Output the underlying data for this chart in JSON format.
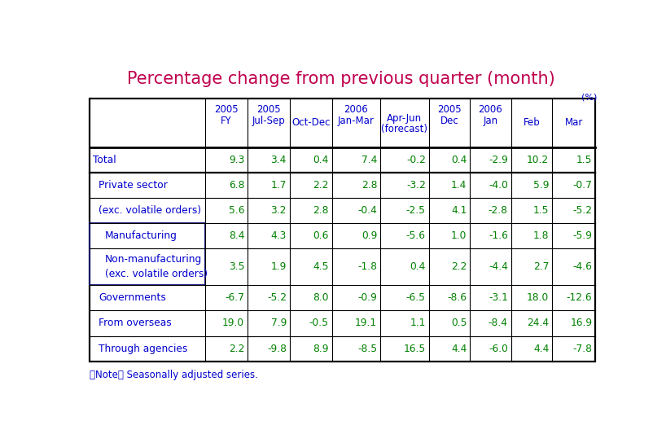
{
  "title": "Percentage change from previous quarter (month)",
  "title_color": "#c0004e",
  "unit_label": "(%)",
  "note": "（Note） Seasonally adjusted series.",
  "header_color": "#0000cd",
  "data_color": "#008000",
  "row_label_color": "#0000cd",
  "col_headers": [
    {
      "line1": "2005",
      "line2": "FY",
      "line3": ""
    },
    {
      "line1": "2005",
      "line2": "Jul-Sep",
      "line3": ""
    },
    {
      "line1": "",
      "line2": "Oct-Dec",
      "line3": ""
    },
    {
      "line1": "2006",
      "line2": "Jan-Mar",
      "line3": ""
    },
    {
      "line1": "",
      "line2": "Apr-Jun",
      "line3": "(forecast)"
    },
    {
      "line1": "2005",
      "line2": "Dec",
      "line3": ""
    },
    {
      "line1": "2006",
      "line2": "Jan",
      "line3": ""
    },
    {
      "line1": "",
      "line2": "Feb",
      "line3": ""
    },
    {
      "line1": "",
      "line2": "Mar",
      "line3": ""
    }
  ],
  "rows": [
    {
      "label": "Total",
      "indent": 0,
      "values": [
        "9.3",
        "3.4",
        "0.4",
        "7.4",
        "-0.2",
        "0.4",
        "-2.9",
        "10.2",
        "1.5"
      ],
      "inner_box": false,
      "multiline": false
    },
    {
      "label": "Private sector",
      "indent": 1,
      "values": [
        "6.8",
        "1.7",
        "2.2",
        "2.8",
        "-3.2",
        "1.4",
        "-4.0",
        "5.9",
        "-0.7"
      ],
      "inner_box": false,
      "multiline": false
    },
    {
      "label": "(exc. volatile orders)",
      "indent": 1,
      "values": [
        "5.6",
        "3.2",
        "2.8",
        "-0.4",
        "-2.5",
        "4.1",
        "-2.8",
        "1.5",
        "-5.2"
      ],
      "inner_box": false,
      "multiline": false
    },
    {
      "label": "Manufacturing",
      "indent": 2,
      "values": [
        "8.4",
        "4.3",
        "0.6",
        "0.9",
        "-5.6",
        "1.0",
        "-1.6",
        "1.8",
        "-5.9"
      ],
      "inner_box": true,
      "multiline": false
    },
    {
      "label": "Non-manufacturing\n(exc. volatile orders)",
      "indent": 2,
      "values": [
        "3.5",
        "1.9",
        "4.5",
        "-1.8",
        "0.4",
        "2.2",
        "-4.4",
        "2.7",
        "-4.6"
      ],
      "inner_box": true,
      "multiline": true
    },
    {
      "label": "Governments",
      "indent": 1,
      "values": [
        "-6.7",
        "-5.2",
        "8.0",
        "-0.9",
        "-6.5",
        "-8.6",
        "-3.1",
        "18.0",
        "-12.6"
      ],
      "inner_box": false,
      "multiline": false
    },
    {
      "label": "From overseas",
      "indent": 1,
      "values": [
        "19.0",
        "7.9",
        "-0.5",
        "19.1",
        "1.1",
        "0.5",
        "-8.4",
        "24.4",
        "16.9"
      ],
      "inner_box": false,
      "multiline": false
    },
    {
      "label": "Through agencies",
      "indent": 1,
      "values": [
        "2.2",
        "-9.8",
        "8.9",
        "-8.5",
        "16.5",
        "4.4",
        "-6.0",
        "4.4",
        "-7.8"
      ],
      "inner_box": false,
      "multiline": false
    }
  ],
  "background_color": "#ffffff"
}
